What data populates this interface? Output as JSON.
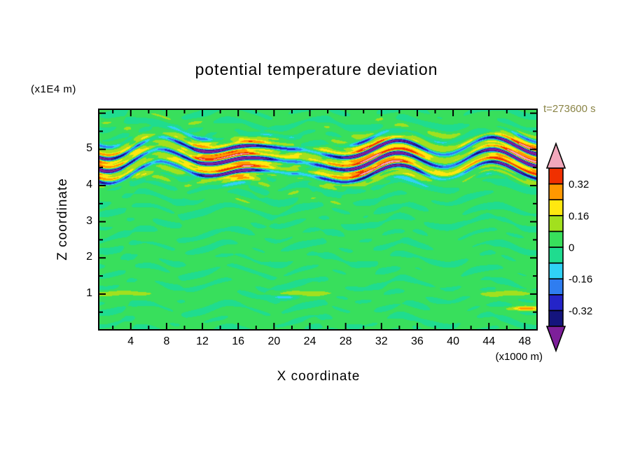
{
  "figure": {
    "title": "potential temperature deviation",
    "time_label": "t=273600 s",
    "time_label_color": "#8a8446",
    "background_color": "#ffffff",
    "frame_color": "#000000"
  },
  "x_axis": {
    "label": "X coordinate",
    "unit_label": "(x1000 m)",
    "tick_values": [
      4,
      8,
      12,
      16,
      20,
      24,
      28,
      32,
      36,
      40,
      44,
      48
    ],
    "minor_tick_step": 2,
    "range": [
      0.5,
      49.3
    ]
  },
  "z_axis": {
    "label": "Z coordinate",
    "unit_label": "(x1E4 m)",
    "tick_values": [
      1,
      2,
      3,
      4,
      5
    ],
    "minor_tick_step": 0.5,
    "range": [
      0.03,
      6.09
    ]
  },
  "colorbar": {
    "levels": [
      -0.4,
      -0.32,
      -0.24,
      -0.16,
      -0.08,
      0,
      0.08,
      0.16,
      0.24,
      0.32,
      0.4
    ],
    "colors": [
      "#14147d",
      "#2424c8",
      "#2f7df0",
      "#30d2f5",
      "#1fdc8f",
      "#38df5c",
      "#a2e01e",
      "#ffe810",
      "#ff9800",
      "#f03000"
    ],
    "under_color": "#7d1f9a",
    "over_color": "#f2a8bc",
    "tick_labels": [
      "0.32",
      "0.16",
      "0",
      "-0.16",
      "-0.32"
    ],
    "tick_levels": [
      0.32,
      0.16,
      0,
      -0.16,
      -0.32
    ]
  },
  "chart_data": {
    "type": "heatmap",
    "subtype": "filled_contour",
    "title": "potential temperature deviation",
    "xlabel": "X coordinate",
    "x_units": "x1000 m",
    "ylabel": "Z coordinate",
    "y_units": "x1E4 m",
    "time_label": "t=273600 s",
    "x_range": [
      0.5,
      49.3
    ],
    "z_range": [
      0.03,
      6.09
    ],
    "contour_interval": 0.08,
    "levels": [
      -0.4,
      -0.32,
      -0.24,
      -0.16,
      -0.08,
      0,
      0.08,
      0.16,
      0.24,
      0.32,
      0.4
    ],
    "value_extremes_shown": [
      -0.4,
      0.4
    ],
    "legend_position": "right",
    "grid": false,
    "features": [
      "Mostly near-zero background (green, 0 to 0.08) with thin horizontally elongated mottled streaks of -0.08 to 0.16 across the whole domain",
      "Strong wave-breaking layer between z = 4.1 and 5.4 (x1E4 m): alternating thin undulating horizontal streaks of strong positive (> 0.32, red/orange/pink) and strong negative (< -0.32, navy/purple) deviation spanning the full x range",
      "Thin positive (yellow) streak near z = 1.0, a small negative (blue) patch near x = 21, z = 0.9, and a small strong positive patch near x = 48, z = 0.6"
    ],
    "field_model": {
      "band_center_z": 4.72,
      "band_halfwidth_z": 0.55,
      "band_amplitude": 0.44,
      "band_vertical_wavelength": 0.34,
      "bg_baseline": 0.015,
      "bg_amplitude": 0.05,
      "bg_band_boost": 1.1,
      "low_level_streak": {
        "z": 1.02,
        "rz": 0.07,
        "amp": 0.12,
        "wavelength_x": 21
      },
      "spots": [
        {
          "x": 21,
          "z": 0.92,
          "amp": -0.17,
          "rx": 1.6,
          "rz": 0.06
        },
        {
          "x": 48,
          "z": 0.6,
          "amp": 0.3,
          "rx": 1.8,
          "rz": 0.06
        }
      ]
    }
  }
}
